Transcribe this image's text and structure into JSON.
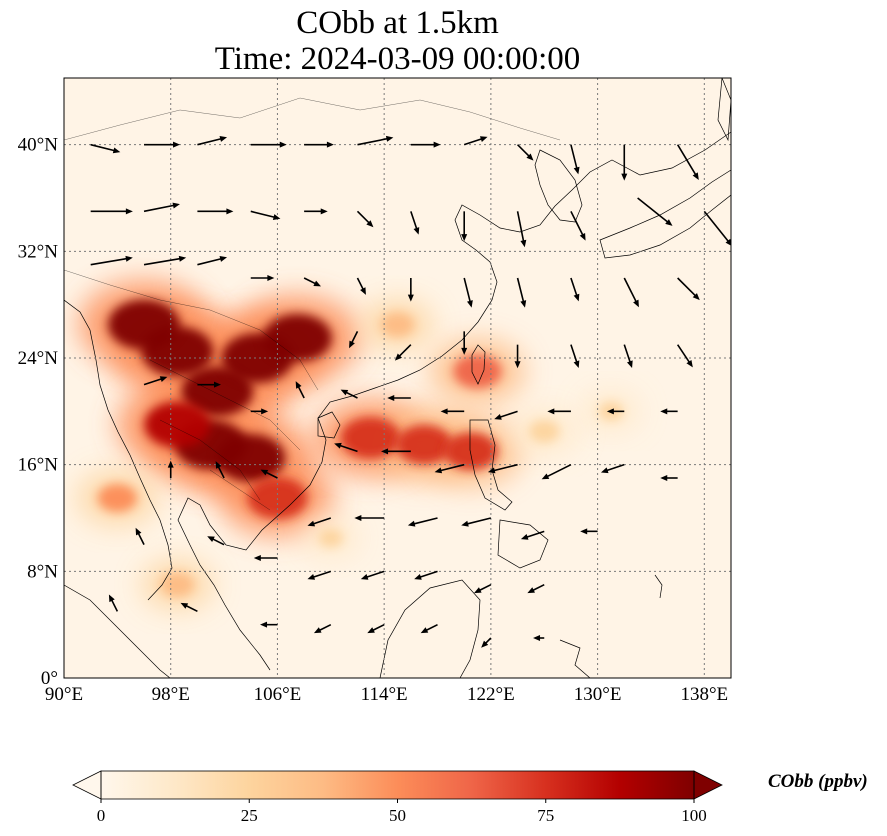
{
  "title": {
    "line1": "CObb at 1.5km",
    "line2": "Time: 2024-03-09 00:00:00"
  },
  "map": {
    "lon_range": [
      90,
      140
    ],
    "lat_range": [
      0,
      45
    ],
    "lon_ticks": [
      {
        "value": 90,
        "label": "90°E"
      },
      {
        "value": 98,
        "label": "98°E"
      },
      {
        "value": 106,
        "label": "106°E"
      },
      {
        "value": 114,
        "label": "114°E"
      },
      {
        "value": 122,
        "label": "122°E"
      },
      {
        "value": 130,
        "label": "130°E"
      },
      {
        "value": 138,
        "label": "138°E"
      }
    ],
    "lat_ticks": [
      {
        "value": 0,
        "label": "0°"
      },
      {
        "value": 8,
        "label": "8°N"
      },
      {
        "value": 16,
        "label": "16°N"
      },
      {
        "value": 24,
        "label": "24°N"
      },
      {
        "value": 32,
        "label": "32°N"
      },
      {
        "value": 40,
        "label": "40°N"
      }
    ],
    "gridlines": true,
    "plumes": [
      {
        "lon": 101.5,
        "lat": 21.5,
        "value": 100
      },
      {
        "lon": 98.5,
        "lat": 24.5,
        "value": 100
      },
      {
        "lon": 96.0,
        "lat": 26.5,
        "value": 100
      },
      {
        "lon": 104.5,
        "lat": 24.0,
        "value": 100
      },
      {
        "lon": 107.5,
        "lat": 25.5,
        "value": 95
      },
      {
        "lon": 101.0,
        "lat": 17.5,
        "value": 100
      },
      {
        "lon": 104.0,
        "lat": 16.5,
        "value": 95
      },
      {
        "lon": 106.0,
        "lat": 13.5,
        "value": 80
      },
      {
        "lon": 98.5,
        "lat": 19.0,
        "value": 90
      },
      {
        "lon": 113.0,
        "lat": 18.0,
        "value": 80
      },
      {
        "lon": 117.0,
        "lat": 17.5,
        "value": 75
      },
      {
        "lon": 120.5,
        "lat": 17.0,
        "value": 70
      },
      {
        "lon": 121.0,
        "lat": 23.0,
        "value": 60
      },
      {
        "lon": 94.0,
        "lat": 13.5,
        "value": 45
      },
      {
        "lon": 98.5,
        "lat": 7.0,
        "value": 35
      },
      {
        "lon": 126.0,
        "lat": 18.5,
        "value": 30
      },
      {
        "lon": 131.0,
        "lat": 20.0,
        "value": 20
      },
      {
        "lon": 110.0,
        "lat": 10.5,
        "value": 20
      },
      {
        "lon": 115.0,
        "lat": 26.5,
        "value": 35
      }
    ],
    "wind_vectors": [
      {
        "lon": 92,
        "lat": 40,
        "u": 4,
        "v": -1
      },
      {
        "lon": 96,
        "lat": 40,
        "u": 5,
        "v": 0
      },
      {
        "lon": 100,
        "lat": 40,
        "u": 4,
        "v": 1
      },
      {
        "lon": 104,
        "lat": 40,
        "u": 5,
        "v": 0
      },
      {
        "lon": 108,
        "lat": 40,
        "u": 4,
        "v": 0
      },
      {
        "lon": 112,
        "lat": 40,
        "u": 5,
        "v": 1
      },
      {
        "lon": 116,
        "lat": 40,
        "u": 4,
        "v": 0
      },
      {
        "lon": 120,
        "lat": 40,
        "u": 3,
        "v": 1
      },
      {
        "lon": 124,
        "lat": 40,
        "u": 2,
        "v": -2
      },
      {
        "lon": 128,
        "lat": 40,
        "u": 1,
        "v": -4
      },
      {
        "lon": 132,
        "lat": 40,
        "u": 0,
        "v": -5
      },
      {
        "lon": 136,
        "lat": 40,
        "u": 3,
        "v": -5
      },
      {
        "lon": 92,
        "lat": 35,
        "u": 6,
        "v": 0
      },
      {
        "lon": 96,
        "lat": 35,
        "u": 5,
        "v": 1
      },
      {
        "lon": 100,
        "lat": 35,
        "u": 5,
        "v": 0
      },
      {
        "lon": 104,
        "lat": 35,
        "u": 4,
        "v": -1
      },
      {
        "lon": 108,
        "lat": 35,
        "u": 3,
        "v": 0
      },
      {
        "lon": 112,
        "lat": 35,
        "u": 2,
        "v": -2
      },
      {
        "lon": 116,
        "lat": 35,
        "u": 1,
        "v": -3
      },
      {
        "lon": 120,
        "lat": 35,
        "u": 0,
        "v": -4
      },
      {
        "lon": 124,
        "lat": 35,
        "u": 1,
        "v": -5
      },
      {
        "lon": 128,
        "lat": 35,
        "u": 2,
        "v": -4
      },
      {
        "lon": 133,
        "lat": 36,
        "u": 5,
        "v": -4
      },
      {
        "lon": 138,
        "lat": 35,
        "u": 4,
        "v": -5
      },
      {
        "lon": 92,
        "lat": 31,
        "u": 6,
        "v": 1
      },
      {
        "lon": 96,
        "lat": 31,
        "u": 6,
        "v": 1
      },
      {
        "lon": 100,
        "lat": 31,
        "u": 4,
        "v": 1
      },
      {
        "lon": 104,
        "lat": 30,
        "u": 3,
        "v": 0
      },
      {
        "lon": 108,
        "lat": 30,
        "u": 2,
        "v": -1
      },
      {
        "lon": 112,
        "lat": 30,
        "u": 1,
        "v": -2
      },
      {
        "lon": 116,
        "lat": 30,
        "u": 0,
        "v": -3
      },
      {
        "lon": 120,
        "lat": 30,
        "u": 1,
        "v": -4
      },
      {
        "lon": 124,
        "lat": 30,
        "u": 1,
        "v": -4
      },
      {
        "lon": 128,
        "lat": 30,
        "u": 1,
        "v": -3
      },
      {
        "lon": 132,
        "lat": 30,
        "u": 2,
        "v": -4
      },
      {
        "lon": 136,
        "lat": 30,
        "u": 3,
        "v": -3
      },
      {
        "lon": 112,
        "lat": 26,
        "u": -1,
        "v": -2
      },
      {
        "lon": 116,
        "lat": 25,
        "u": -2,
        "v": -2
      },
      {
        "lon": 120,
        "lat": 26,
        "u": 0,
        "v": -3
      },
      {
        "lon": 124,
        "lat": 25,
        "u": 0,
        "v": -3
      },
      {
        "lon": 128,
        "lat": 25,
        "u": 1,
        "v": -3
      },
      {
        "lon": 132,
        "lat": 25,
        "u": 1,
        "v": -3
      },
      {
        "lon": 136,
        "lat": 25,
        "u": 2,
        "v": -3
      },
      {
        "lon": 108,
        "lat": 21,
        "u": -1,
        "v": 2
      },
      {
        "lon": 112,
        "lat": 21,
        "u": -2,
        "v": 1
      },
      {
        "lon": 116,
        "lat": 21,
        "u": -3,
        "v": 0
      },
      {
        "lon": 120,
        "lat": 20,
        "u": -3,
        "v": 0
      },
      {
        "lon": 124,
        "lat": 20,
        "u": -3,
        "v": -1
      },
      {
        "lon": 128,
        "lat": 20,
        "u": -3,
        "v": 0
      },
      {
        "lon": 132,
        "lat": 20,
        "u": -2,
        "v": 0
      },
      {
        "lon": 136,
        "lat": 20,
        "u": -2,
        "v": 0
      },
      {
        "lon": 112,
        "lat": 17,
        "u": -3,
        "v": 1
      },
      {
        "lon": 116,
        "lat": 17,
        "u": -4,
        "v": 0
      },
      {
        "lon": 120,
        "lat": 16,
        "u": -4,
        "v": -1
      },
      {
        "lon": 124,
        "lat": 16,
        "u": -4,
        "v": -1
      },
      {
        "lon": 128,
        "lat": 16,
        "u": -4,
        "v": -2
      },
      {
        "lon": 132,
        "lat": 16,
        "u": -3,
        "v": -1
      },
      {
        "lon": 136,
        "lat": 15,
        "u": -2,
        "v": 0
      },
      {
        "lon": 110,
        "lat": 12,
        "u": -3,
        "v": -1
      },
      {
        "lon": 114,
        "lat": 12,
        "u": -4,
        "v": 0
      },
      {
        "lon": 118,
        "lat": 12,
        "u": -4,
        "v": -1
      },
      {
        "lon": 122,
        "lat": 12,
        "u": -4,
        "v": -1
      },
      {
        "lon": 126,
        "lat": 11,
        "u": -3,
        "v": -1
      },
      {
        "lon": 130,
        "lat": 11,
        "u": -2,
        "v": 0
      },
      {
        "lon": 96,
        "lat": 10,
        "u": -1,
        "v": 2
      },
      {
        "lon": 102,
        "lat": 10,
        "u": -2,
        "v": 1
      },
      {
        "lon": 106,
        "lat": 9,
        "u": -3,
        "v": 0
      },
      {
        "lon": 110,
        "lat": 8,
        "u": -3,
        "v": -1
      },
      {
        "lon": 114,
        "lat": 8,
        "u": -3,
        "v": -1
      },
      {
        "lon": 118,
        "lat": 8,
        "u": -3,
        "v": -1
      },
      {
        "lon": 122,
        "lat": 7,
        "u": -2,
        "v": -1
      },
      {
        "lon": 126,
        "lat": 7,
        "u": -2,
        "v": -1
      },
      {
        "lon": 94,
        "lat": 5,
        "u": -1,
        "v": 2
      },
      {
        "lon": 100,
        "lat": 5,
        "u": -2,
        "v": 1
      },
      {
        "lon": 106,
        "lat": 4,
        "u": -2,
        "v": 0
      },
      {
        "lon": 110,
        "lat": 4,
        "u": -2,
        "v": -1
      },
      {
        "lon": 114,
        "lat": 4,
        "u": -2,
        "v": -1
      },
      {
        "lon": 118,
        "lat": 4,
        "u": -2,
        "v": -1
      },
      {
        "lon": 122,
        "lat": 3,
        "u": -1,
        "v": -1
      },
      {
        "lon": 126,
        "lat": 3,
        "u": -1,
        "v": 0
      },
      {
        "lon": 96,
        "lat": 22,
        "u": 3,
        "v": 1
      },
      {
        "lon": 100,
        "lat": 22,
        "u": 3,
        "v": 0
      },
      {
        "lon": 104,
        "lat": 20,
        "u": 2,
        "v": 0
      },
      {
        "lon": 98,
        "lat": 15,
        "u": 0,
        "v": 2
      },
      {
        "lon": 102,
        "lat": 15,
        "u": -1,
        "v": 2
      },
      {
        "lon": 106,
        "lat": 15,
        "u": -2,
        "v": 1
      }
    ]
  },
  "colorbar": {
    "ticks": [
      {
        "value": 0,
        "label": "0"
      },
      {
        "value": 25,
        "label": "25"
      },
      {
        "value": 50,
        "label": "50"
      },
      {
        "value": 75,
        "label": "75"
      },
      {
        "value": 100,
        "label": "100"
      }
    ],
    "range": [
      0,
      100
    ],
    "unit_label": "CObb (ppbv)",
    "colormap": [
      "#fff7ec",
      "#fee8c8",
      "#fdd49e",
      "#fdbb84",
      "#fc8d59",
      "#ef6548",
      "#d7301f",
      "#b30000",
      "#7f0000"
    ]
  }
}
